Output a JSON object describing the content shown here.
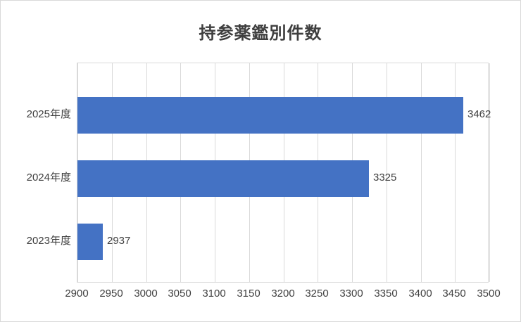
{
  "chart_data": {
    "type": "bar",
    "orientation": "horizontal",
    "title": "持参薬鑑別件数",
    "categories": [
      "2025年度",
      "2024年度",
      "2023年度"
    ],
    "values": [
      3462,
      3325,
      2937
    ],
    "data_labels": [
      "3462",
      "3325",
      "2937"
    ],
    "xlabel": "",
    "ylabel": "",
    "xlim": [
      2900,
      3500
    ],
    "x_ticks": [
      2900,
      2950,
      3000,
      3050,
      3100,
      3150,
      3200,
      3250,
      3300,
      3350,
      3400,
      3450,
      3500
    ],
    "grid": true,
    "legend": false,
    "colors": {
      "bar": "#4472c4",
      "gridline": "#d9d9d9",
      "plot_border": "#d9d9d9",
      "text": "#404040",
      "title_text": "#3f3f3f",
      "background": "#ffffff"
    }
  }
}
